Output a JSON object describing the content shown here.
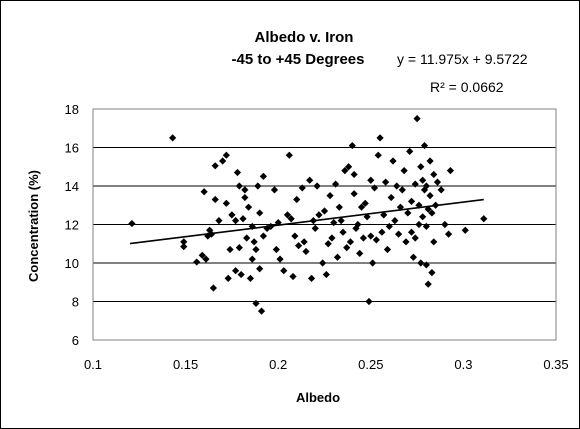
{
  "chart_data": {
    "type": "scatter",
    "title_lines": [
      "Albedo v. Iron",
      "-45 to +45 Degrees"
    ],
    "xlabel": "Albedo",
    "ylabel": "Concentration (%)",
    "xlim": [
      0.1,
      0.35
    ],
    "ylim": [
      6,
      18
    ],
    "x_ticks": [
      0.1,
      0.15,
      0.2,
      0.25,
      0.3,
      0.35
    ],
    "y_ticks": [
      6,
      8,
      10,
      12,
      14,
      16,
      18
    ],
    "x_tick_labels": [
      "0.1",
      "0.15",
      "0.2",
      "0.25",
      "0.3",
      "0.35"
    ],
    "y_tick_labels": [
      "6",
      "8",
      "10",
      "12",
      "14",
      "16",
      "18"
    ],
    "grid": "horizontal",
    "legend": "none",
    "trendline": {
      "slope": 11.975,
      "intercept": 9.5722,
      "x_range": [
        0.12,
        0.311
      ]
    },
    "equation": "y = 11.975x + 9.5722",
    "r_squared": "R² = 0.0662",
    "marker_color": "#000000",
    "points": [
      {
        "x": 0.121,
        "y": 12.05
      },
      {
        "x": 0.143,
        "y": 16.5
      },
      {
        "x": 0.149,
        "y": 11.1
      },
      {
        "x": 0.149,
        "y": 10.85
      },
      {
        "x": 0.156,
        "y": 10.05
      },
      {
        "x": 0.159,
        "y": 10.4
      },
      {
        "x": 0.16,
        "y": 13.7
      },
      {
        "x": 0.161,
        "y": 10.2
      },
      {
        "x": 0.162,
        "y": 11.4
      },
      {
        "x": 0.163,
        "y": 11.7
      },
      {
        "x": 0.164,
        "y": 11.5
      },
      {
        "x": 0.165,
        "y": 8.7
      },
      {
        "x": 0.166,
        "y": 13.3
      },
      {
        "x": 0.166,
        "y": 15.05
      },
      {
        "x": 0.168,
        "y": 12.2
      },
      {
        "x": 0.17,
        "y": 15.3
      },
      {
        "x": 0.172,
        "y": 15.6
      },
      {
        "x": 0.172,
        "y": 13.1
      },
      {
        "x": 0.173,
        "y": 9.2
      },
      {
        "x": 0.174,
        "y": 10.7
      },
      {
        "x": 0.175,
        "y": 12.5
      },
      {
        "x": 0.177,
        "y": 12.2
      },
      {
        "x": 0.177,
        "y": 9.6
      },
      {
        "x": 0.178,
        "y": 14.7
      },
      {
        "x": 0.179,
        "y": 14.0
      },
      {
        "x": 0.179,
        "y": 10.8
      },
      {
        "x": 0.18,
        "y": 9.4
      },
      {
        "x": 0.181,
        "y": 12.3
      },
      {
        "x": 0.182,
        "y": 13.8
      },
      {
        "x": 0.182,
        "y": 13.4
      },
      {
        "x": 0.183,
        "y": 11.3
      },
      {
        "x": 0.184,
        "y": 12.9
      },
      {
        "x": 0.185,
        "y": 9.2
      },
      {
        "x": 0.186,
        "y": 11.9
      },
      {
        "x": 0.186,
        "y": 10.2
      },
      {
        "x": 0.187,
        "y": 11.1
      },
      {
        "x": 0.188,
        "y": 7.9
      },
      {
        "x": 0.188,
        "y": 10.7
      },
      {
        "x": 0.189,
        "y": 14.0
      },
      {
        "x": 0.19,
        "y": 12.6
      },
      {
        "x": 0.19,
        "y": 9.7
      },
      {
        "x": 0.191,
        "y": 7.5
      },
      {
        "x": 0.192,
        "y": 11.4
      },
      {
        "x": 0.192,
        "y": 14.5
      },
      {
        "x": 0.194,
        "y": 11.8
      },
      {
        "x": 0.196,
        "y": 11.9
      },
      {
        "x": 0.198,
        "y": 13.8
      },
      {
        "x": 0.199,
        "y": 10.7
      },
      {
        "x": 0.2,
        "y": 12.1
      },
      {
        "x": 0.201,
        "y": 10.2
      },
      {
        "x": 0.203,
        "y": 9.6
      },
      {
        "x": 0.205,
        "y": 12.5
      },
      {
        "x": 0.206,
        "y": 15.6
      },
      {
        "x": 0.207,
        "y": 12.3
      },
      {
        "x": 0.208,
        "y": 9.3
      },
      {
        "x": 0.209,
        "y": 11.4
      },
      {
        "x": 0.21,
        "y": 13.3
      },
      {
        "x": 0.211,
        "y": 10.9
      },
      {
        "x": 0.213,
        "y": 13.9
      },
      {
        "x": 0.214,
        "y": 11.1
      },
      {
        "x": 0.215,
        "y": 10.6
      },
      {
        "x": 0.217,
        "y": 14.3
      },
      {
        "x": 0.218,
        "y": 9.2
      },
      {
        "x": 0.219,
        "y": 12.2
      },
      {
        "x": 0.22,
        "y": 11.8
      },
      {
        "x": 0.221,
        "y": 14.0
      },
      {
        "x": 0.222,
        "y": 12.5
      },
      {
        "x": 0.224,
        "y": 10.0
      },
      {
        "x": 0.225,
        "y": 12.7
      },
      {
        "x": 0.226,
        "y": 9.4
      },
      {
        "x": 0.227,
        "y": 11.0
      },
      {
        "x": 0.228,
        "y": 13.5
      },
      {
        "x": 0.229,
        "y": 11.3
      },
      {
        "x": 0.23,
        "y": 12.1
      },
      {
        "x": 0.231,
        "y": 14.1
      },
      {
        "x": 0.232,
        "y": 10.3
      },
      {
        "x": 0.233,
        "y": 12.9
      },
      {
        "x": 0.234,
        "y": 12.2
      },
      {
        "x": 0.235,
        "y": 11.6
      },
      {
        "x": 0.236,
        "y": 14.8
      },
      {
        "x": 0.237,
        "y": 10.8
      },
      {
        "x": 0.238,
        "y": 15.0
      },
      {
        "x": 0.239,
        "y": 11.1
      },
      {
        "x": 0.24,
        "y": 16.1
      },
      {
        "x": 0.241,
        "y": 13.6
      },
      {
        "x": 0.241,
        "y": 14.6
      },
      {
        "x": 0.242,
        "y": 11.8
      },
      {
        "x": 0.243,
        "y": 12.0
      },
      {
        "x": 0.244,
        "y": 10.5
      },
      {
        "x": 0.245,
        "y": 12.9
      },
      {
        "x": 0.246,
        "y": 11.3
      },
      {
        "x": 0.247,
        "y": 13.1
      },
      {
        "x": 0.248,
        "y": 12.4
      },
      {
        "x": 0.249,
        "y": 8.0
      },
      {
        "x": 0.25,
        "y": 14.3
      },
      {
        "x": 0.25,
        "y": 11.4
      },
      {
        "x": 0.251,
        "y": 10.0
      },
      {
        "x": 0.252,
        "y": 13.9
      },
      {
        "x": 0.253,
        "y": 11.2
      },
      {
        "x": 0.254,
        "y": 15.6
      },
      {
        "x": 0.255,
        "y": 16.5
      },
      {
        "x": 0.256,
        "y": 11.6
      },
      {
        "x": 0.257,
        "y": 12.5
      },
      {
        "x": 0.258,
        "y": 14.2
      },
      {
        "x": 0.259,
        "y": 10.7
      },
      {
        "x": 0.26,
        "y": 11.9
      },
      {
        "x": 0.261,
        "y": 13.4
      },
      {
        "x": 0.262,
        "y": 15.3
      },
      {
        "x": 0.263,
        "y": 12.2
      },
      {
        "x": 0.264,
        "y": 14.0
      },
      {
        "x": 0.265,
        "y": 11.5
      },
      {
        "x": 0.266,
        "y": 12.9
      },
      {
        "x": 0.267,
        "y": 13.8
      },
      {
        "x": 0.268,
        "y": 14.8
      },
      {
        "x": 0.269,
        "y": 11.1
      },
      {
        "x": 0.27,
        "y": 12.6
      },
      {
        "x": 0.271,
        "y": 15.8
      },
      {
        "x": 0.272,
        "y": 11.6
      },
      {
        "x": 0.272,
        "y": 13.2
      },
      {
        "x": 0.273,
        "y": 10.3
      },
      {
        "x": 0.274,
        "y": 14.1
      },
      {
        "x": 0.274,
        "y": 11.3
      },
      {
        "x": 0.275,
        "y": 17.5
      },
      {
        "x": 0.276,
        "y": 12.0
      },
      {
        "x": 0.276,
        "y": 13.0
      },
      {
        "x": 0.277,
        "y": 15.0
      },
      {
        "x": 0.277,
        "y": 10.0
      },
      {
        "x": 0.278,
        "y": 14.3
      },
      {
        "x": 0.278,
        "y": 12.4
      },
      {
        "x": 0.279,
        "y": 16.1
      },
      {
        "x": 0.279,
        "y": 13.8
      },
      {
        "x": 0.28,
        "y": 9.9
      },
      {
        "x": 0.28,
        "y": 11.9
      },
      {
        "x": 0.28,
        "y": 14.0
      },
      {
        "x": 0.281,
        "y": 12.8
      },
      {
        "x": 0.281,
        "y": 8.9
      },
      {
        "x": 0.282,
        "y": 13.5
      },
      {
        "x": 0.282,
        "y": 15.3
      },
      {
        "x": 0.283,
        "y": 12.6
      },
      {
        "x": 0.283,
        "y": 9.5
      },
      {
        "x": 0.284,
        "y": 14.6
      },
      {
        "x": 0.284,
        "y": 11.1
      },
      {
        "x": 0.285,
        "y": 13.0
      },
      {
        "x": 0.286,
        "y": 14.2
      },
      {
        "x": 0.288,
        "y": 13.8
      },
      {
        "x": 0.29,
        "y": 12.0
      },
      {
        "x": 0.292,
        "y": 11.5
      },
      {
        "x": 0.293,
        "y": 14.8
      },
      {
        "x": 0.301,
        "y": 11.7
      },
      {
        "x": 0.311,
        "y": 12.3
      }
    ]
  }
}
